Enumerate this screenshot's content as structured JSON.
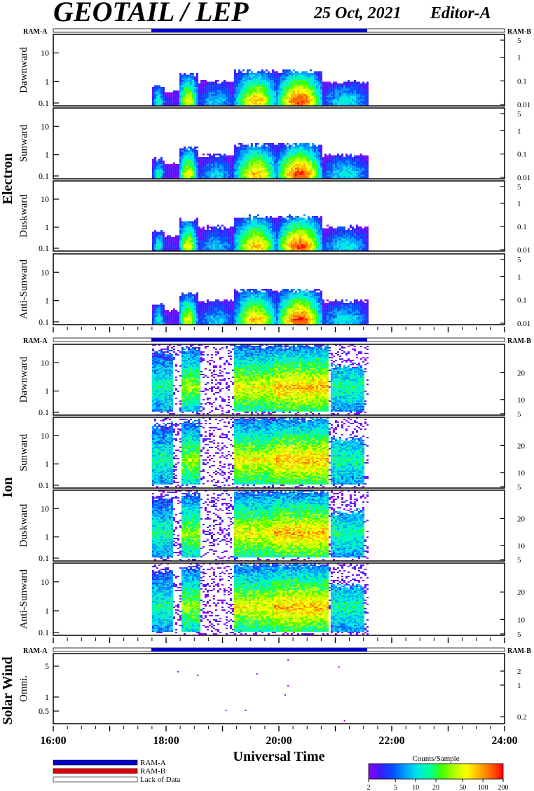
{
  "header": {
    "title": "GEOTAIL / LEP",
    "date": "25 Oct, 2021",
    "editor": "Editor-A"
  },
  "labels": {
    "ram_a": "RAM-A",
    "ram_b": "RAM-B",
    "group_electron": "Electron",
    "group_ion": "Ion",
    "group_solar_wind": "Solar Wind"
  },
  "x_axis": {
    "title": "Universal Time",
    "ticks": [
      "16:00",
      "18:00",
      "20:00",
      "22:00",
      "24:00"
    ]
  },
  "legend": {
    "ram_a": "RAM-A",
    "ram_b": "RAM-B",
    "lack": "Lack of Data",
    "ram_a_color": "#0000cc",
    "ram_b_color": "#dd0000"
  },
  "colorbar": {
    "title": "Counts/Sample",
    "ticks": [
      "2",
      "5",
      "10",
      "20",
      "50",
      "100",
      "200"
    ],
    "colors": [
      "#8a00ff",
      "#3c1cff",
      "#0050ff",
      "#00a0ff",
      "#00e6e6",
      "#00ff9a",
      "#44ff00",
      "#b4ff00",
      "#ffff00",
      "#ffb400",
      "#ff6400",
      "#ff0000"
    ]
  },
  "chart_data": {
    "type": "heatmap",
    "x_range_hours": [
      16,
      24
    ],
    "data_coverage_hours": [
      17.75,
      21.58
    ],
    "panels": [
      {
        "group": "Electron",
        "label": "Dawnward",
        "left_ticks": [
          "10",
          "1",
          "0.1"
        ],
        "right_ticks": [
          "5",
          "1",
          "0.1",
          "0.01"
        ]
      },
      {
        "group": "Electron",
        "label": "Sunward",
        "left_ticks": [
          "10",
          "1",
          "0.1"
        ],
        "right_ticks": [
          "5",
          "1",
          "0.1",
          "0.01"
        ]
      },
      {
        "group": "Electron",
        "label": "Duskward",
        "left_ticks": [
          "10",
          "1",
          "0.1"
        ],
        "right_ticks": [
          "5",
          "1",
          "0.1",
          "0.01"
        ]
      },
      {
        "group": "Electron",
        "label": "Anti-Sunward",
        "left_ticks": [
          "10",
          "1",
          "0.1"
        ],
        "right_ticks": [
          "5",
          "1",
          "0.1",
          "0.01"
        ]
      },
      {
        "group": "Ion",
        "label": "Dawnward",
        "left_ticks": [
          "10",
          "1",
          "0.1"
        ],
        "right_ticks": [
          "20",
          "10",
          "5"
        ]
      },
      {
        "group": "Ion",
        "label": "Sunward",
        "left_ticks": [
          "10",
          "1",
          "0.1"
        ],
        "right_ticks": [
          "20",
          "10",
          "5"
        ]
      },
      {
        "group": "Ion",
        "label": "Duskward",
        "left_ticks": [
          "10",
          "1",
          "0.1"
        ],
        "right_ticks": [
          "20",
          "10",
          "5"
        ]
      },
      {
        "group": "Ion",
        "label": "Anti-Sunward",
        "left_ticks": [
          "10",
          "1",
          "0.1"
        ],
        "right_ticks": [
          "20",
          "10",
          "5"
        ]
      },
      {
        "group": "Solar Wind",
        "label": "Omni.",
        "left_ticks": [
          "5",
          "1",
          "0.5"
        ],
        "right_ticks": [
          "2",
          "1",
          "0.2"
        ]
      }
    ],
    "electron_blobs": [
      {
        "t0": 17.75,
        "t1": 17.95,
        "e": 0.15,
        "level": 0.45
      },
      {
        "t0": 18.2,
        "t1": 18.55,
        "e": 0.3,
        "level": 0.72
      },
      {
        "t0": 18.55,
        "t1": 19.2,
        "e": 0.2,
        "level": 0.35
      },
      {
        "t0": 19.2,
        "t1": 19.95,
        "e": 0.35,
        "level": 0.8
      },
      {
        "t0": 19.95,
        "t1": 20.75,
        "e": 0.35,
        "level": 0.95
      },
      {
        "t0": 20.75,
        "t1": 21.58,
        "e": 0.2,
        "level": 0.4
      }
    ],
    "ion_blobs": [
      {
        "t0": 17.75,
        "t1": 18.1,
        "e": 0.45,
        "level": 0.45
      },
      {
        "t0": 18.25,
        "t1": 18.6,
        "e": 0.5,
        "level": 0.6
      },
      {
        "t0": 19.2,
        "t1": 19.9,
        "e": 0.55,
        "level": 0.7
      },
      {
        "t0": 19.9,
        "t1": 20.85,
        "e": 0.55,
        "level": 0.78
      },
      {
        "t0": 20.9,
        "t1": 21.5,
        "e": 0.25,
        "level": 0.45
      }
    ]
  }
}
